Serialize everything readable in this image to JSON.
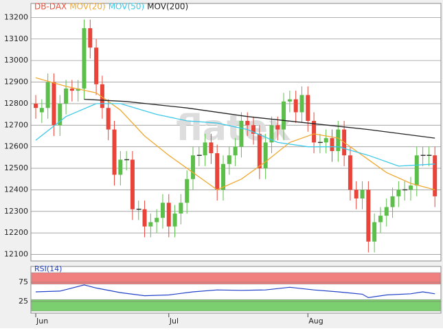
{
  "chart_data": [
    {
      "type": "candlestick",
      "legend": [
        "DB-DAX",
        "MOV(20)",
        "MOV(50)",
        "MOV(200)"
      ],
      "legend_colors": [
        "#e8503a",
        "#f0a830",
        "#3cc8e8",
        "#222222"
      ],
      "watermark": "flatex",
      "open": [
        12800,
        12760,
        12780,
        12900,
        12700,
        12800,
        12870,
        12860,
        12870,
        13150,
        13060,
        12890,
        12780,
        12680,
        12470,
        12540,
        12540,
        12310,
        12310,
        12230,
        12250,
        12270,
        12340,
        12230,
        12290,
        12340,
        12450,
        12560,
        12560,
        12620,
        12570,
        12400,
        12520,
        12560,
        12600,
        12720,
        12700,
        12660,
        12500,
        12620,
        12700,
        12680,
        12810,
        12820,
        12760,
        12840,
        12720,
        12620,
        12620,
        12640,
        12580,
        12680,
        12560,
        12400,
        12360,
        12400,
        12160,
        12250,
        12280,
        12320,
        12370,
        12400,
        12400,
        12420,
        12560,
        12560,
        12560
      ],
      "high": [
        12840,
        12820,
        12940,
        12940,
        12840,
        12910,
        12910,
        12910,
        13190,
        13190,
        13100,
        12930,
        12820,
        12720,
        12580,
        12580,
        12580,
        12350,
        12350,
        12290,
        12310,
        12380,
        12380,
        12330,
        12380,
        12490,
        12600,
        12600,
        12660,
        12660,
        12610,
        12560,
        12600,
        12640,
        12760,
        12760,
        12740,
        12700,
        12660,
        12740,
        12740,
        12850,
        12860,
        12860,
        12880,
        12880,
        12760,
        12660,
        12680,
        12680,
        12720,
        12720,
        12600,
        12440,
        12440,
        12440,
        12290,
        12320,
        12360,
        12410,
        12440,
        12440,
        12460,
        12600,
        12600,
        12600,
        12600
      ],
      "low": [
        12730,
        12710,
        12730,
        12650,
        12650,
        12750,
        12810,
        12810,
        12820,
        13010,
        12840,
        12730,
        12630,
        12420,
        12420,
        12490,
        12260,
        12260,
        12180,
        12180,
        12200,
        12220,
        12180,
        12180,
        12240,
        12290,
        12400,
        12510,
        12510,
        12520,
        12350,
        12350,
        12470,
        12510,
        12550,
        12650,
        12610,
        12450,
        12450,
        12570,
        12630,
        12630,
        12760,
        12710,
        12710,
        12670,
        12570,
        12570,
        12570,
        12530,
        12530,
        12510,
        12350,
        12310,
        12310,
        12110,
        12110,
        12200,
        12230,
        12270,
        12320,
        12350,
        12350,
        12370,
        12510,
        12510,
        12320
      ],
      "close": [
        12780,
        12780,
        12900,
        12700,
        12800,
        12870,
        12860,
        12870,
        13150,
        13060,
        12890,
        12780,
        12680,
        12470,
        12540,
        12540,
        12310,
        12310,
        12230,
        12250,
        12270,
        12340,
        12230,
        12290,
        12340,
        12450,
        12560,
        12560,
        12620,
        12570,
        12400,
        12520,
        12560,
        12600,
        12720,
        12700,
        12660,
        12500,
        12620,
        12700,
        12680,
        12810,
        12820,
        12760,
        12840,
        12720,
        12620,
        12620,
        12640,
        12580,
        12680,
        12560,
        12400,
        12360,
        12400,
        12160,
        12250,
        12280,
        12320,
        12370,
        12400,
        12400,
        12420,
        12560,
        12560,
        12560,
        12370
      ],
      "up_color": "#5cbf4a",
      "down_color": "#e8443a",
      "series": [
        {
          "name": "MOV(20)",
          "color": "#f0a830",
          "x": [
            0,
            5,
            10,
            14,
            18,
            22,
            26,
            30,
            34,
            38,
            42,
            46,
            50,
            54,
            58,
            62,
            66
          ],
          "values": [
            12920,
            12880,
            12850,
            12770,
            12650,
            12560,
            12480,
            12400,
            12450,
            12530,
            12620,
            12660,
            12640,
            12560,
            12480,
            12430,
            12400
          ]
        },
        {
          "name": "MOV(50)",
          "color": "#3cc8e8",
          "x": [
            0,
            5,
            10,
            14,
            20,
            25,
            30,
            35,
            40,
            45,
            50,
            55,
            60,
            66
          ],
          "values": [
            12630,
            12740,
            12800,
            12800,
            12750,
            12720,
            12710,
            12680,
            12620,
            12600,
            12600,
            12560,
            12510,
            12520
          ]
        },
        {
          "name": "MOV(200)",
          "color": "#222222",
          "x": [
            8,
            15,
            25,
            35,
            45,
            55,
            66
          ],
          "values": [
            12820,
            12810,
            12780,
            12740,
            12710,
            12680,
            12640
          ]
        }
      ],
      "xlim": [
        -0.8,
        67
      ],
      "xticks": [
        {
          "value": 0,
          "label": "Jun"
        },
        {
          "value": 22,
          "label": "Jul"
        },
        {
          "value": 45,
          "label": "Aug"
        }
      ],
      "ylim": [
        12070,
        13265
      ],
      "yticks": [
        12100,
        12200,
        12300,
        12400,
        12500,
        12600,
        12700,
        12800,
        12900,
        13000,
        13100,
        13200
      ],
      "grid": true
    },
    {
      "type": "line",
      "title": "RSI(14)",
      "color": "#2040c8",
      "x": [
        0,
        4,
        8,
        10,
        14,
        18,
        22,
        26,
        30,
        34,
        38,
        42,
        46,
        50,
        54,
        55,
        58,
        62,
        64,
        66
      ],
      "values": [
        50,
        52,
        68,
        60,
        48,
        40,
        42,
        50,
        55,
        54,
        55,
        62,
        55,
        50,
        44,
        35,
        42,
        45,
        50,
        45
      ],
      "bands": [
        {
          "from": 70,
          "to": 100,
          "color": "#f08080"
        },
        {
          "from": 0,
          "to": 30,
          "color": "#7ccf6e"
        }
      ],
      "xlim": [
        -0.8,
        67
      ],
      "ylim": [
        0,
        100
      ],
      "yticks": [
        25,
        75
      ]
    }
  ]
}
